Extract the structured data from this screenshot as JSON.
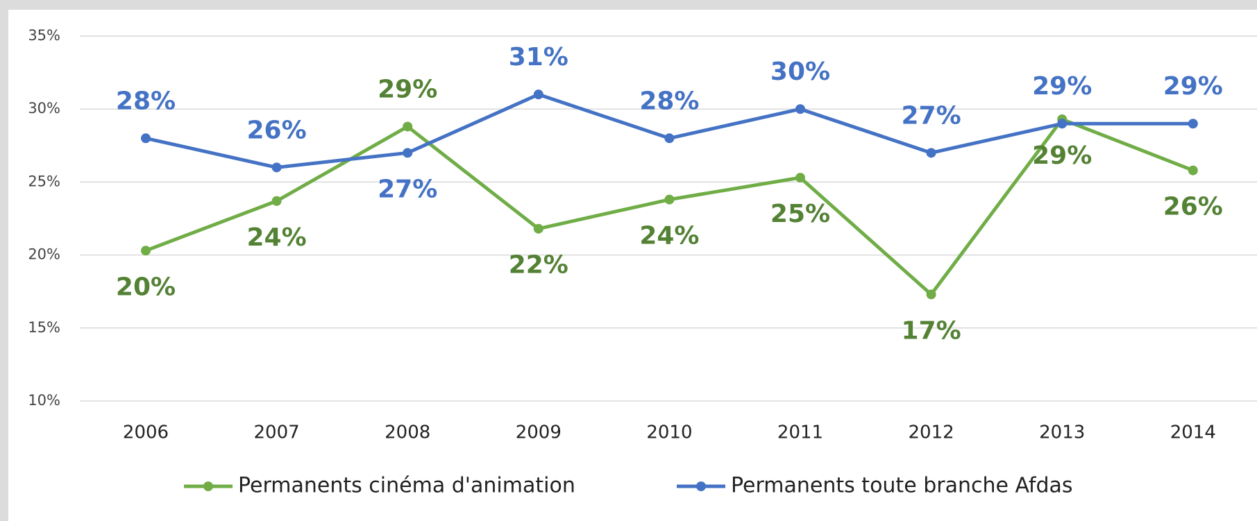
{
  "chart_data": {
    "type": "line",
    "categories": [
      "2006",
      "2007",
      "2008",
      "2009",
      "2010",
      "2011",
      "2012",
      "2013",
      "2014"
    ],
    "series": [
      {
        "name": "Permanents cinéma d'animation",
        "color": "#70ad47",
        "label_color": "#548235",
        "values": [
          20.3,
          23.7,
          28.8,
          21.8,
          23.8,
          25.3,
          17.3,
          29.3,
          25.8
        ],
        "value_labels": [
          "20%",
          "24%",
          "29%",
          "22%",
          "24%",
          "25%",
          "17%",
          "29%",
          "26%"
        ]
      },
      {
        "name": "Permanents toute branche Afdas",
        "color": "#4472c4",
        "label_color": "#4472c4",
        "values": [
          28,
          26,
          27,
          31,
          28,
          30,
          27,
          29,
          29
        ],
        "value_labels": [
          "28%",
          "26%",
          "27%",
          "31%",
          "28%",
          "30%",
          "27%",
          "29%",
          "29%"
        ]
      }
    ],
    "ylim": [
      10,
      35
    ],
    "yticks": [
      {
        "value": 10,
        "label": "10%"
      },
      {
        "value": 15,
        "label": "15%"
      },
      {
        "value": 20,
        "label": "20%"
      },
      {
        "value": 25,
        "label": "25%"
      },
      {
        "value": 30,
        "label": "30%"
      },
      {
        "value": 35,
        "label": "35%"
      }
    ],
    "grid": true,
    "legend": "bottom"
  }
}
